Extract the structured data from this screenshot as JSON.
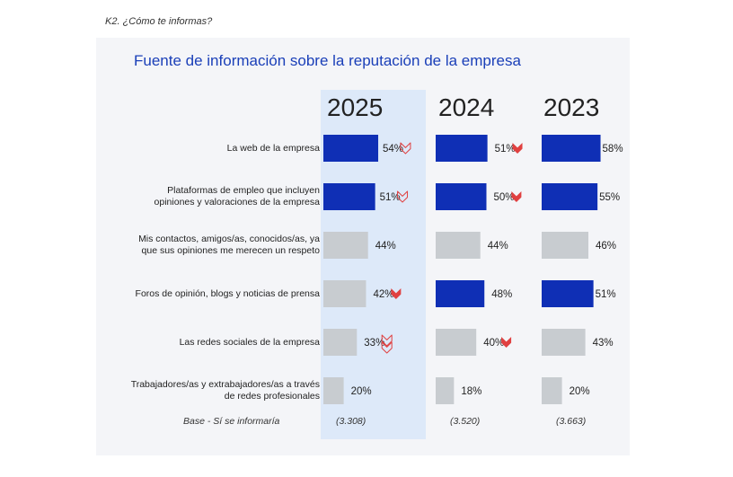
{
  "question": "K2. ¿Cómo te informas?",
  "chart_data": {
    "type": "bar",
    "title": "Fuente de información sobre la reputación de la empresa",
    "categories": [
      "La web de la empresa",
      "Plataformas de empleo que incluyen opiniones y valoraciones de la empresa",
      "Mis contactos, amigos/as, conocidos/as, ya que sus opiniones me merecen un respeto",
      "Foros de opinión, blogs y noticias de prensa",
      "Las redes sociales de la empresa",
      "Trabajadores/as y extrabajadores/as a través de redes profesionales"
    ],
    "category_lines": [
      [
        "La web de la empresa"
      ],
      [
        "Plataformas de empleo que incluyen",
        "opiniones y valoraciones de la empresa"
      ],
      [
        "Mis contactos, amigos/as, conocidos/as, ya",
        "que sus opiniones me merecen un respeto"
      ],
      [
        "Foros de opinión, blogs y noticias de prensa"
      ],
      [
        "Las redes sociales de la empresa"
      ],
      [
        "Trabajadores/as y extrabajadores/as a través",
        "de redes profesionales"
      ]
    ],
    "series": [
      {
        "name": "2025",
        "values": [
          54,
          51,
          44,
          42,
          33,
          20
        ],
        "highlighted": [
          true,
          true,
          false,
          false,
          false,
          false
        ],
        "trend": [
          "down-outline",
          "down-outline",
          "",
          "down",
          "down-double-outline",
          ""
        ]
      },
      {
        "name": "2024",
        "values": [
          51,
          50,
          44,
          48,
          40,
          18
        ],
        "highlighted": [
          true,
          true,
          false,
          true,
          false,
          false
        ],
        "trend": [
          "down",
          "down",
          "",
          "",
          "down",
          ""
        ]
      },
      {
        "name": "2023",
        "values": [
          58,
          55,
          46,
          51,
          43,
          20
        ],
        "highlighted": [
          true,
          true,
          false,
          true,
          false,
          false
        ],
        "trend": [
          "",
          "",
          "",
          "",
          "",
          ""
        ]
      }
    ],
    "base": {
      "label": "Base - Sí se informaría",
      "values": [
        "(3.308)",
        "(3.520)",
        "(3.663)"
      ]
    },
    "value_suffix": "%"
  },
  "colors": {
    "highlight_bar": "#0f2fb5",
    "default_bar": "#c8ccd0",
    "trend_arrow": "#e04040",
    "title": "#1a3fb8"
  }
}
